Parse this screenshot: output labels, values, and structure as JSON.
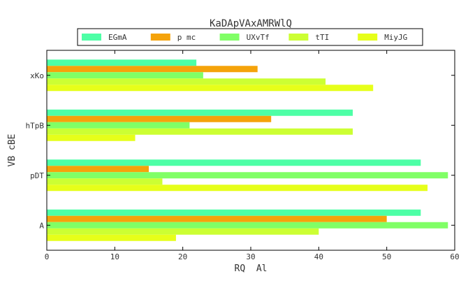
{
  "chart_data": {
    "type": "bar",
    "orientation": "horizontal",
    "title": "KaDApVAxAMRWlQ",
    "xlabel": "RQ  Al",
    "ylabel": "VB cBE",
    "xlim": [
      0,
      60
    ],
    "x_ticks": [
      "0",
      "10",
      "20",
      "30",
      "40",
      "50",
      "60"
    ],
    "categories": [
      "A",
      "pDT",
      "hTpB",
      "xKo"
    ],
    "legend_position": "top",
    "grid": false,
    "series": [
      {
        "name": "EGmA",
        "color": "#4dffa6",
        "values": [
          55,
          55,
          45,
          22
        ]
      },
      {
        "name": "p mc",
        "color": "#f5a30a",
        "values": [
          50,
          15,
          33,
          31
        ]
      },
      {
        "name": "UXvTf",
        "color": "#80ff66",
        "values": [
          59,
          59,
          21,
          23
        ]
      },
      {
        "name": "tTI",
        "color": "#ccff33",
        "values": [
          40,
          17,
          45,
          41
        ]
      },
      {
        "name": "MiyJG",
        "color": "#e6ff1a",
        "values": [
          19,
          56,
          13,
          48
        ]
      }
    ]
  }
}
